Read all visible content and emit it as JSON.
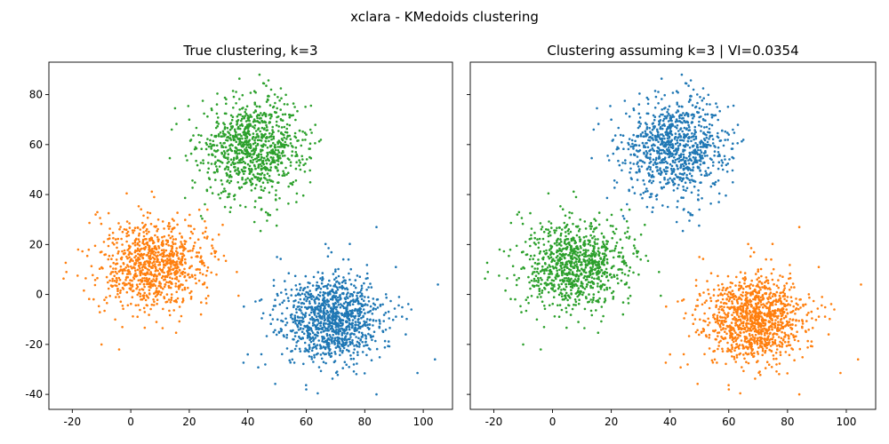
{
  "figure": {
    "suptitle": "xclara - KMedoids clustering"
  },
  "palette": {
    "c0": "#1f77b4",
    "c1": "#ff7f0e",
    "c2": "#2ca02c"
  },
  "chart_data": [
    {
      "type": "scatter",
      "title": "True clustering, k=3",
      "xlabel": "",
      "ylabel": "",
      "xlim": [
        -28,
        110
      ],
      "ylim": [
        -46,
        93
      ],
      "xticks": [
        -20,
        0,
        20,
        40,
        60,
        80,
        100
      ],
      "yticks": [
        -40,
        -20,
        0,
        20,
        40,
        60,
        80
      ],
      "grid": false,
      "legend": "none",
      "series": [
        {
          "color": "#2ca02c",
          "center": [
            42,
            59
          ],
          "spread": [
            9,
            10
          ],
          "count": 900,
          "sample_points": [
            [
              20,
              70
            ],
            [
              14,
              66
            ],
            [
              60,
              64
            ],
            [
              48,
              82
            ],
            [
              30,
              40
            ],
            [
              50,
              34
            ],
            [
              26,
              60
            ],
            [
              58,
              50
            ],
            [
              44,
              88
            ],
            [
              33,
              48
            ]
          ]
        },
        {
          "color": "#ff7f0e",
          "center": [
            8,
            12
          ],
          "spread": [
            9,
            9
          ],
          "count": 900,
          "sample_points": [
            [
              -22,
              9
            ],
            [
              -18,
              18
            ],
            [
              -12,
              32
            ],
            [
              8,
              39
            ],
            [
              28,
              22
            ],
            [
              30,
              14
            ],
            [
              24,
              -8
            ],
            [
              -10,
              -20
            ],
            [
              -4,
              -22
            ],
            [
              14,
              0
            ]
          ]
        },
        {
          "color": "#1f77b4",
          "center": [
            69,
            -10
          ],
          "spread": [
            9,
            9
          ],
          "count": 1100,
          "sample_points": [
            [
              40,
              -24
            ],
            [
              46,
              -28
            ],
            [
              60,
              -38
            ],
            [
              84,
              -40
            ],
            [
              94,
              -16
            ],
            [
              104,
              -26
            ],
            [
              105,
              4
            ],
            [
              84,
              27
            ],
            [
              50,
              15
            ],
            [
              70,
              10
            ]
          ]
        }
      ]
    },
    {
      "type": "scatter",
      "title": "Clustering assuming k=3 | VI=0.0354",
      "xlabel": "",
      "ylabel": "",
      "xlim": [
        -28,
        110
      ],
      "ylim": [
        -46,
        93
      ],
      "xticks": [
        -20,
        0,
        20,
        40,
        60,
        80,
        100
      ],
      "yticks": [],
      "grid": false,
      "legend": "none",
      "series": [
        {
          "color": "#1f77b4",
          "center": [
            42,
            59
          ],
          "spread": [
            9,
            10
          ],
          "count": 900,
          "sample_points": [
            [
              20,
              70
            ],
            [
              14,
              66
            ],
            [
              60,
              64
            ],
            [
              48,
              82
            ],
            [
              30,
              40
            ],
            [
              50,
              34
            ],
            [
              26,
              60
            ],
            [
              58,
              50
            ],
            [
              44,
              88
            ],
            [
              33,
              48
            ]
          ]
        },
        {
          "color": "#2ca02c",
          "center": [
            8,
            12
          ],
          "spread": [
            9,
            9
          ],
          "count": 900,
          "sample_points": [
            [
              -22,
              9
            ],
            [
              -18,
              18
            ],
            [
              -12,
              32
            ],
            [
              8,
              39
            ],
            [
              28,
              22
            ],
            [
              30,
              14
            ],
            [
              24,
              -8
            ],
            [
              -10,
              -20
            ],
            [
              -4,
              -22
            ],
            [
              14,
              0
            ]
          ]
        },
        {
          "color": "#ff7f0e",
          "center": [
            69,
            -10
          ],
          "spread": [
            9,
            9
          ],
          "count": 1100,
          "sample_points": [
            [
              40,
              -24
            ],
            [
              46,
              -28
            ],
            [
              60,
              -38
            ],
            [
              84,
              -40
            ],
            [
              94,
              -16
            ],
            [
              104,
              -26
            ],
            [
              105,
              4
            ],
            [
              84,
              27
            ],
            [
              50,
              15
            ],
            [
              70,
              10
            ]
          ]
        }
      ]
    }
  ]
}
